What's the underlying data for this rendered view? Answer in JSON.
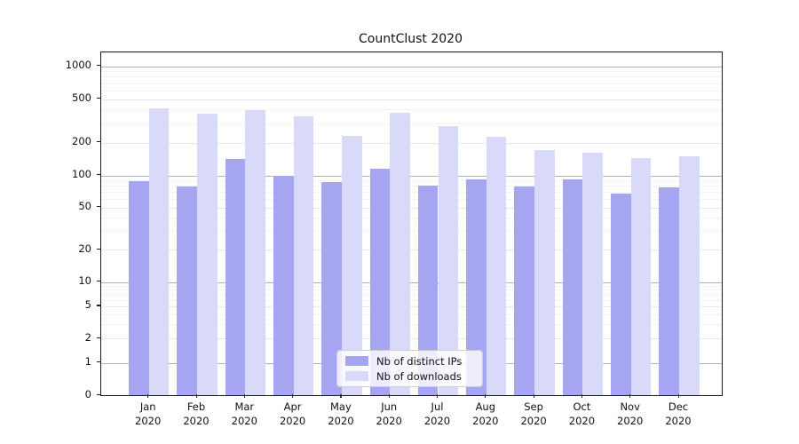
{
  "title": "CountClust 2020",
  "chart_data": {
    "type": "bar",
    "title": "CountClust 2020",
    "categories": [
      "Jan",
      "Feb",
      "Mar",
      "Apr",
      "May",
      "Jun",
      "Jul",
      "Aug",
      "Sep",
      "Oct",
      "Nov",
      "Dec"
    ],
    "year": "2020",
    "series": [
      {
        "name": "Nb of distinct IPs",
        "color": "#a5a5f2",
        "values": [
          88,
          79,
          142,
          100,
          87,
          116,
          81,
          92,
          78,
          92,
          67,
          77
        ]
      },
      {
        "name": "Nb of downloads",
        "color": "#d9d9f9",
        "values": [
          410,
          370,
          395,
          350,
          232,
          375,
          285,
          226,
          172,
          161,
          143,
          150
        ]
      }
    ],
    "yscale": "symlog",
    "ylim": [
      0,
      1400
    ],
    "yticks": [
      1000,
      500,
      200,
      100,
      50,
      20,
      10,
      5,
      2,
      1,
      0
    ],
    "ytick_labels": [
      "1000",
      "500",
      "200",
      "100",
      "50",
      "20",
      "10",
      "5",
      "2",
      "1",
      "0"
    ],
    "grid": "on",
    "legend_position": "bottom-center"
  },
  "colors": {
    "background": "#ffffff",
    "spine": "#1a1a1a",
    "grid_major": "#b0b0b0",
    "grid_labeled": "#e7e7e7",
    "grid_minor": "#f2f2f2"
  }
}
